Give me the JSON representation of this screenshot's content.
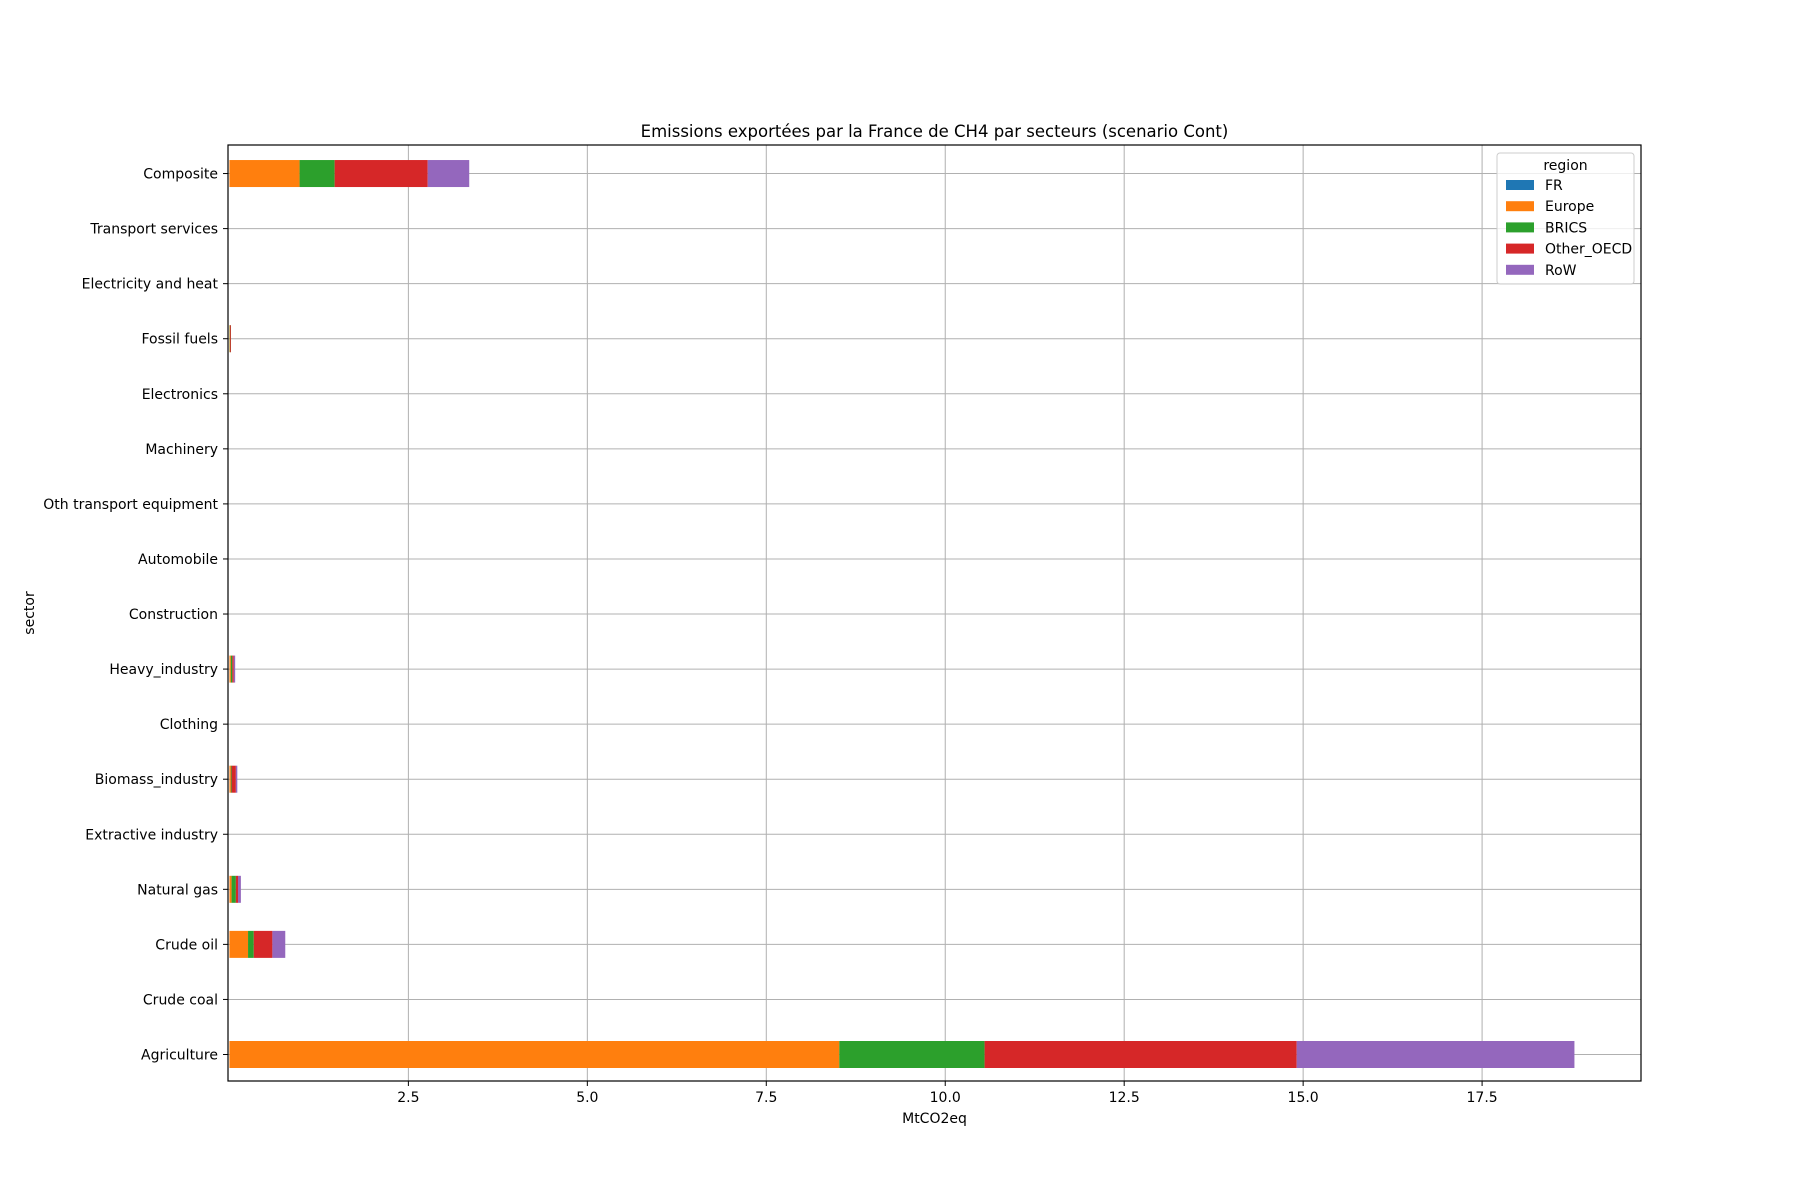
{
  "chart_data": {
    "type": "bar",
    "orientation": "horizontal",
    "stacked": true,
    "title": "Emissions exportées par la France de CH4 par secteurs (scenario Cont)",
    "xlabel": "MtCO2eq",
    "ylabel": "sector",
    "xlim": [
      -0.02,
      19.72
    ],
    "xticks": [
      2.5,
      5.0,
      7.5,
      10.0,
      12.5,
      15.0,
      17.5
    ],
    "xtick_labels": [
      "2.5",
      "5.0",
      "7.5",
      "10.0",
      "12.5",
      "15.0",
      "17.5"
    ],
    "grid": true,
    "legend_position": "top-right",
    "legend_title": "region",
    "categories": [
      "Agriculture",
      "Crude coal",
      "Crude oil",
      "Natural gas",
      "Extractive industry",
      "Biomass_industry",
      "Clothing",
      "Heavy_industry",
      "Construction",
      "Automobile",
      "Oth transport equipment",
      "Machinery",
      "Electronics",
      "Fossil fuels",
      "Electricity and heat",
      "Transport services",
      "Composite"
    ],
    "series": [
      {
        "name": "FR",
        "color": "#1f77b4",
        "values": [
          0,
          0,
          0,
          0,
          0,
          0,
          0,
          0,
          0,
          0,
          0,
          0,
          0,
          0,
          0,
          0,
          0
        ]
      },
      {
        "name": "Europe",
        "color": "#ff7f0e",
        "values": [
          8.52,
          0.0,
          0.26,
          0.03,
          0.0,
          0.02,
          0.0,
          0.02,
          0.0,
          0.0,
          0.0,
          0.0,
          0.0,
          0.005,
          0.0,
          0.0,
          0.98
        ]
      },
      {
        "name": "BRICS",
        "color": "#2ca02c",
        "values": [
          2.03,
          0.0,
          0.08,
          0.06,
          0.0,
          0.01,
          0.0,
          0.02,
          0.0,
          0.0,
          0.0,
          0.0,
          0.0,
          0.005,
          0.0,
          0.0,
          0.49
        ]
      },
      {
        "name": "Other_OECD",
        "color": "#d62728",
        "values": [
          4.36,
          0.0,
          0.26,
          0.03,
          0.0,
          0.06,
          0.0,
          0.02,
          0.0,
          0.0,
          0.0,
          0.0,
          0.0,
          0.01,
          0.0,
          0.0,
          1.3
        ]
      },
      {
        "name": "RoW",
        "color": "#9467bd",
        "values": [
          3.88,
          0.0,
          0.18,
          0.04,
          0.0,
          0.02,
          0.0,
          0.02,
          0.0,
          0.0,
          0.0,
          0.0,
          0.0,
          0.0,
          0.0,
          0.0,
          0.58
        ]
      }
    ]
  }
}
